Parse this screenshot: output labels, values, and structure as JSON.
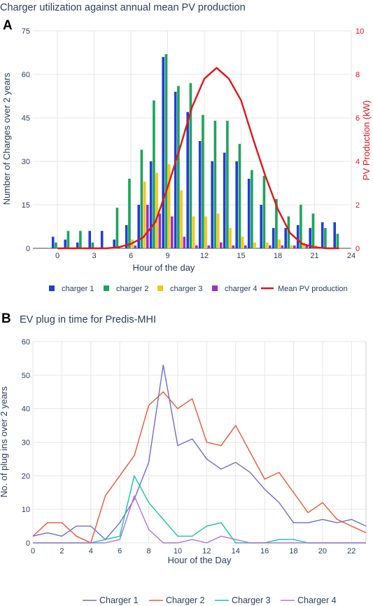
{
  "chart_data": [
    {
      "panel_label": "A",
      "type": "bar",
      "title": "Charger utilization against annual mean PV production",
      "xlabel": "Hour of the day",
      "ylabel": "Number of Charges over 2 years",
      "y2label": "PV Production (kW)",
      "xlim": [
        -2,
        24
      ],
      "ylim": [
        0,
        75
      ],
      "y2lim": [
        0,
        10
      ],
      "xticks": [
        0,
        3,
        6,
        9,
        12,
        15,
        18,
        21,
        24
      ],
      "yticks": [
        0,
        15,
        30,
        45,
        60,
        75
      ],
      "y2ticks": [
        0,
        2,
        4,
        6,
        8,
        10
      ],
      "x": [
        0,
        1,
        2,
        3,
        4,
        5,
        6,
        7,
        8,
        9,
        10,
        11,
        12,
        13,
        14,
        15,
        16,
        17,
        18,
        19,
        20,
        21,
        22,
        23
      ],
      "legend_position": "bottom",
      "series": [
        {
          "name": "charger 1",
          "color": "#1f3fd6",
          "values": [
            4,
            3,
            2,
            6,
            6,
            3,
            8,
            15,
            30,
            66,
            54,
            47,
            37,
            30,
            33,
            30,
            24,
            15,
            7,
            7,
            8,
            7,
            9,
            9
          ]
        },
        {
          "name": "charger 2",
          "color": "#1fa35c",
          "values": [
            2,
            6,
            6,
            2,
            0,
            14,
            24,
            34,
            51,
            67,
            56,
            57,
            46,
            44,
            44,
            36,
            27,
            25,
            17,
            11,
            15,
            12,
            7,
            5
          ]
        },
        {
          "name": "charger 3",
          "color": "#f5c518",
          "values": [
            0,
            0,
            0,
            0,
            0,
            0,
            3,
            23,
            26,
            29,
            20,
            11,
            11,
            12,
            7,
            4,
            2,
            2,
            3,
            1,
            2,
            1,
            0,
            0
          ]
        },
        {
          "name": "charger 4",
          "color": "#9b2fd1",
          "values": [
            0,
            0,
            0,
            0,
            0,
            0,
            1,
            15,
            12,
            11,
            4,
            1,
            1,
            2,
            1,
            1,
            0,
            1,
            1,
            1,
            1,
            0,
            0,
            0
          ]
        }
      ],
      "line_series": {
        "name": "Mean PV production",
        "color": "#e0151b",
        "axis": "y2",
        "x": [
          0,
          1,
          2,
          3,
          4,
          5,
          6,
          7,
          8,
          9,
          10,
          11,
          12,
          13,
          14,
          15,
          16,
          17,
          18,
          19,
          20,
          21,
          22,
          23
        ],
        "values": [
          0,
          0,
          0,
          0,
          0,
          0.05,
          0.2,
          0.5,
          1.2,
          2.8,
          4.6,
          6.5,
          7.8,
          8.3,
          7.8,
          6.8,
          5.0,
          3.3,
          1.8,
          0.7,
          0.2,
          0.05,
          0,
          0
        ]
      }
    },
    {
      "panel_label": "B",
      "type": "line",
      "title": "EV plug in time for Predis-MHI",
      "xlabel": "Hour of the Day",
      "ylabel": "No. of plug ins over 2 years",
      "xlim": [
        0,
        23
      ],
      "ylim": [
        0,
        60
      ],
      "xticks": [
        0,
        2,
        4,
        6,
        8,
        10,
        12,
        14,
        16,
        18,
        20,
        22
      ],
      "yticks": [
        0,
        10,
        20,
        30,
        40,
        50,
        60
      ],
      "legend_position": "bottom",
      "x": [
        0,
        1,
        2,
        3,
        4,
        5,
        6,
        7,
        8,
        9,
        10,
        11,
        12,
        13,
        14,
        15,
        16,
        17,
        18,
        19,
        20,
        21,
        22,
        23
      ],
      "series": [
        {
          "name": "Charger 1",
          "color": "#6b6fc9",
          "values": [
            2,
            3,
            2,
            5,
            5,
            1,
            6,
            13,
            24,
            53,
            29,
            31,
            25,
            22,
            24,
            21,
            16,
            12,
            6,
            6,
            7,
            6,
            7,
            5
          ]
        },
        {
          "name": "Charger 2",
          "color": "#e8573a",
          "values": [
            2,
            6,
            6,
            2,
            0,
            14,
            20,
            26,
            41,
            45,
            40,
            43,
            30,
            29,
            35,
            27,
            19,
            21,
            15,
            9,
            12,
            7,
            5,
            3
          ]
        },
        {
          "name": "Charger 3",
          "color": "#19c2a4",
          "values": [
            0,
            0,
            0,
            0,
            0,
            1,
            2,
            20,
            12,
            7,
            2,
            2,
            5,
            6,
            0,
            0,
            0,
            1,
            1,
            0,
            0,
            0,
            0,
            0
          ]
        },
        {
          "name": "Charger 4",
          "color": "#b073dd",
          "values": [
            0,
            0,
            0,
            0,
            0,
            0,
            1,
            14,
            4,
            0,
            0,
            1,
            0,
            2,
            1,
            0,
            0,
            0,
            0,
            0,
            0,
            0,
            0,
            0
          ]
        }
      ]
    }
  ]
}
